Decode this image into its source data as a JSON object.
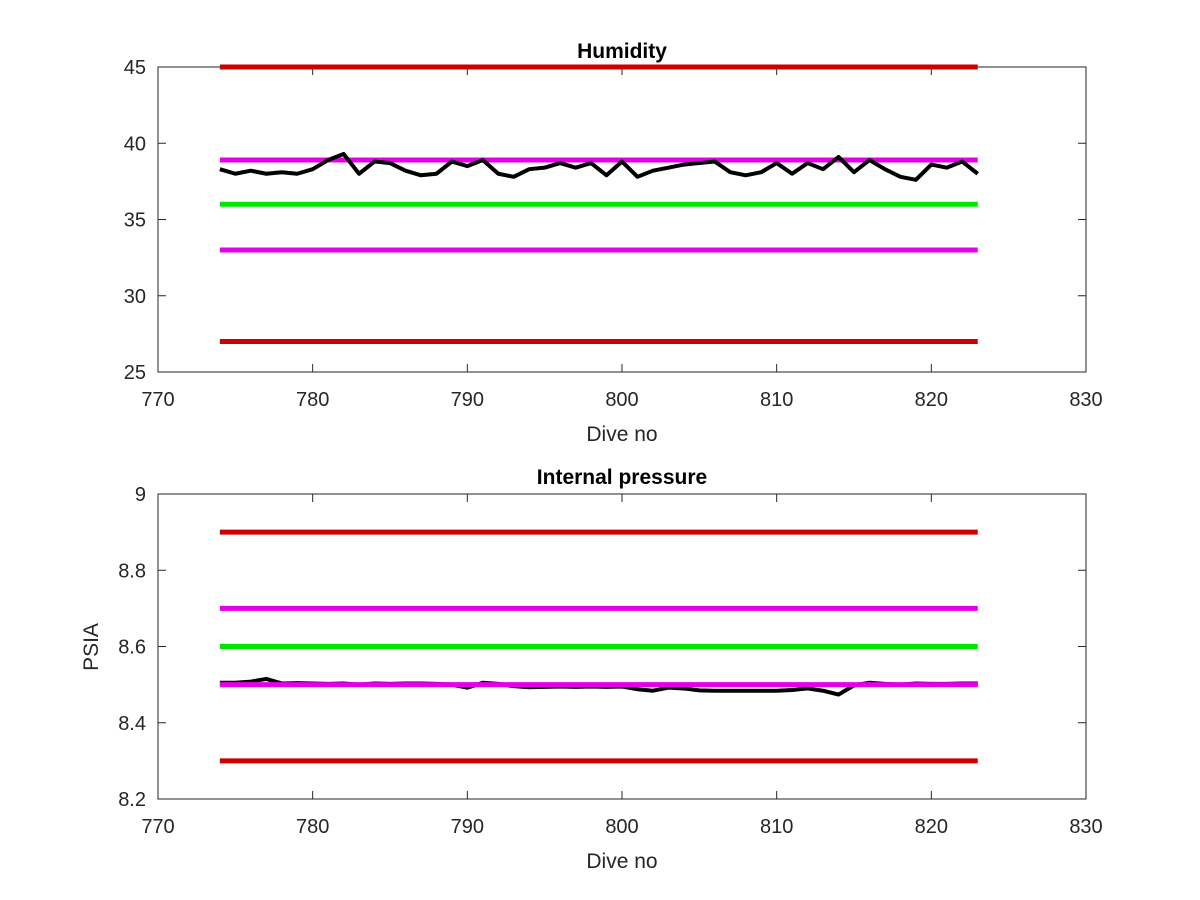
{
  "colors": {
    "limit": "#cc0000",
    "warning": "#e600e6",
    "target": "#00e600",
    "data": "#000000"
  },
  "chart_data": [
    {
      "type": "line",
      "title": "Humidity",
      "xlabel": "Dive no",
      "ylabel": "",
      "xlim": [
        770,
        830
      ],
      "ylim": [
        25,
        45
      ],
      "xticks": [
        770,
        780,
        790,
        800,
        810,
        820,
        830
      ],
      "yticks": [
        25,
        30,
        35,
        40,
        45
      ],
      "grid": false,
      "reference_lines": [
        {
          "y": 45,
          "x": [
            774,
            823
          ],
          "color": "#cc0000"
        },
        {
          "y": 38.9,
          "x": [
            774,
            823
          ],
          "color": "#e600e6"
        },
        {
          "y": 36,
          "x": [
            774,
            823
          ],
          "color": "#00e600"
        },
        {
          "y": 33,
          "x": [
            774,
            823
          ],
          "color": "#e600e6"
        },
        {
          "y": 27,
          "x": [
            774,
            823
          ],
          "color": "#cc0000"
        }
      ],
      "series": [
        {
          "color": "#000000",
          "x": [
            774,
            775,
            776,
            777,
            778,
            779,
            780,
            781,
            782,
            783,
            784,
            785,
            786,
            787,
            788,
            789,
            790,
            791,
            792,
            793,
            794,
            795,
            796,
            797,
            798,
            799,
            800,
            801,
            802,
            803,
            804,
            805,
            806,
            807,
            808,
            809,
            810,
            811,
            812,
            813,
            814,
            815,
            816,
            817,
            818,
            819,
            820,
            821,
            822,
            823
          ],
          "y": [
            38.3,
            38.0,
            38.2,
            38.0,
            38.1,
            38.0,
            38.3,
            38.9,
            39.3,
            38.0,
            38.8,
            38.7,
            38.2,
            37.9,
            38.0,
            38.8,
            38.5,
            38.9,
            38.0,
            37.8,
            38.3,
            38.4,
            38.7,
            38.4,
            38.7,
            37.9,
            38.8,
            37.8,
            38.2,
            38.4,
            38.6,
            38.7,
            38.8,
            38.1,
            37.9,
            38.1,
            38.7,
            38.0,
            38.7,
            38.3,
            39.1,
            38.1,
            38.9,
            38.3,
            37.8,
            37.6,
            38.6,
            38.4,
            38.8,
            38.0
          ]
        }
      ]
    },
    {
      "type": "line",
      "title": "Internal pressure",
      "xlabel": "Dive no",
      "ylabel": "PSIA",
      "xlim": [
        770,
        830
      ],
      "ylim": [
        8.2,
        9
      ],
      "xticks": [
        770,
        780,
        790,
        800,
        810,
        820,
        830
      ],
      "yticks": [
        8.2,
        8.4,
        8.6,
        8.8,
        9
      ],
      "grid": false,
      "reference_lines": [
        {
          "y": 8.9,
          "x": [
            774,
            823
          ],
          "color": "#cc0000"
        },
        {
          "y": 8.7,
          "x": [
            774,
            823
          ],
          "color": "#e600e6"
        },
        {
          "y": 8.6,
          "x": [
            774,
            823
          ],
          "color": "#00e600"
        },
        {
          "y": 8.3,
          "x": [
            774,
            823
          ],
          "color": "#cc0000"
        }
      ],
      "series": [
        {
          "color": "#000000",
          "x": [
            774,
            775,
            776,
            777,
            778,
            779,
            780,
            781,
            782,
            783,
            784,
            785,
            786,
            787,
            788,
            789,
            790,
            791,
            792,
            793,
            794,
            795,
            796,
            797,
            798,
            799,
            800,
            801,
            802,
            803,
            804,
            805,
            806,
            807,
            808,
            809,
            810,
            811,
            812,
            813,
            814,
            815,
            816,
            817,
            818,
            819,
            820,
            821,
            822,
            823
          ],
          "y": [
            8.505,
            8.505,
            8.508,
            8.515,
            8.503,
            8.504,
            8.503,
            8.502,
            8.503,
            8.5,
            8.503,
            8.502,
            8.503,
            8.503,
            8.502,
            8.5,
            8.492,
            8.505,
            8.502,
            8.496,
            8.493,
            8.494,
            8.495,
            8.494,
            8.495,
            8.494,
            8.495,
            8.488,
            8.484,
            8.492,
            8.49,
            8.485,
            8.484,
            8.484,
            8.484,
            8.484,
            8.484,
            8.486,
            8.49,
            8.484,
            8.474,
            8.498,
            8.505,
            8.502,
            8.5,
            8.503,
            8.502,
            8.502,
            8.503,
            8.503
          ]
        },
        {
          "color": "#e600e6",
          "x": [
            774,
            823
          ],
          "y": [
            8.5,
            8.5
          ]
        }
      ]
    }
  ]
}
